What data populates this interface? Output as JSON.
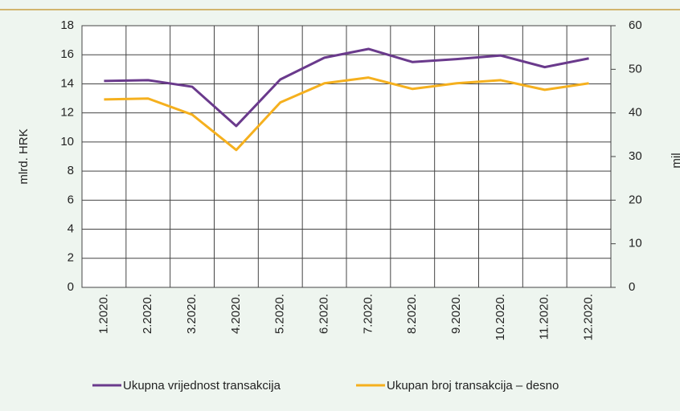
{
  "chart_data": {
    "type": "line",
    "categories": [
      "1.2020.",
      "2.2020.",
      "3.2020.",
      "4.2020.",
      "5.2020.",
      "6.2020.",
      "7.2020.",
      "8.2020.",
      "9.2020.",
      "10.2020.",
      "11.2020.",
      "12.2020."
    ],
    "series": [
      {
        "name": "Ukupna vrijednost transakcija",
        "color": "#6a3a8c",
        "values": [
          14.2,
          14.25,
          13.8,
          11.1,
          14.3,
          15.8,
          16.4,
          15.5,
          15.7,
          15.95,
          15.15,
          15.75
        ]
      },
      {
        "name": "Ukupan broj transakcija – desno",
        "color": "#f5b01e",
        "axis": "y2",
        "values": [
          43.1,
          43.3,
          39.6,
          31.5,
          42.4,
          46.8,
          48.1,
          45.5,
          46.8,
          47.5,
          45.3,
          46.8
        ]
      }
    ],
    "ylabel": "mlrd. HRK",
    "y2label": "mil",
    "ylim": [
      0,
      18
    ],
    "yticks": [
      0,
      2,
      4,
      6,
      8,
      10,
      12,
      14,
      16,
      18
    ],
    "y2lim": [
      0,
      60
    ],
    "y2ticks": [
      0,
      10,
      20,
      30,
      40,
      50,
      60
    ],
    "grid": true,
    "legend": "bottom"
  }
}
